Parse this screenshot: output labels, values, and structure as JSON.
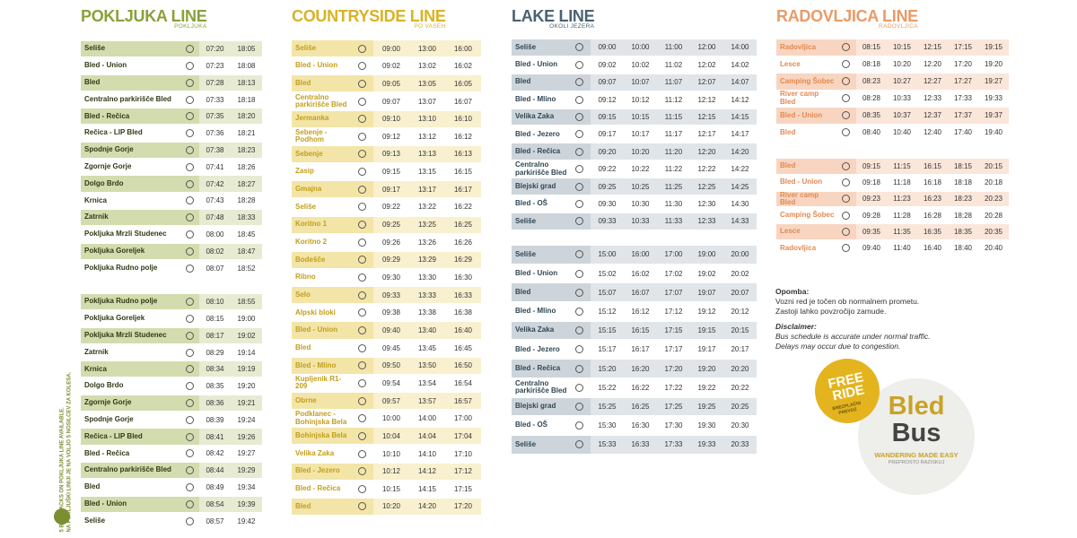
{
  "lines": [
    {
      "title": "POKLJUKA LINE",
      "subtitle": "POKLJUKA",
      "blocks": [
        {
          "rows": [
            {
              "stop": "Seliše",
              "times": [
                "07:20",
                "18:05"
              ]
            },
            {
              "stop": "Bled - Union",
              "times": [
                "07:23",
                "18:08"
              ]
            },
            {
              "stop": "Bled",
              "times": [
                "07:28",
                "18:13"
              ]
            },
            {
              "stop": "Centralno parkirišče Bled",
              "times": [
                "07:33",
                "18:18"
              ]
            },
            {
              "stop": "Bled - Rečica",
              "times": [
                "07:35",
                "18:20"
              ]
            },
            {
              "stop": "Rečica - LIP Bled",
              "times": [
                "07:36",
                "18:21"
              ]
            },
            {
              "stop": "Spodnje Gorje",
              "times": [
                "07:38",
                "18:23"
              ]
            },
            {
              "stop": "Zgornje Gorje",
              "times": [
                "07:41",
                "18:26"
              ]
            },
            {
              "stop": "Dolgo Brdo",
              "times": [
                "07:42",
                "18:27"
              ]
            },
            {
              "stop": "Krnica",
              "times": [
                "07:43",
                "18:28"
              ]
            },
            {
              "stop": "Zatrnik",
              "times": [
                "07:48",
                "18:33"
              ]
            },
            {
              "stop": "Pokljuka Mrzli Studenec",
              "times": [
                "08:00",
                "18:45"
              ]
            },
            {
              "stop": "Pokljuka Goreljek",
              "times": [
                "08:02",
                "18:47"
              ]
            },
            {
              "stop": "Pokljuka Rudno polje",
              "times": [
                "08:07",
                "18:52"
              ]
            }
          ]
        },
        {
          "rows": [
            {
              "stop": "Pokljuka Rudno polje",
              "times": [
                "08:10",
                "18:55"
              ]
            },
            {
              "stop": "Pokljuka Goreljek",
              "times": [
                "08:15",
                "19:00"
              ]
            },
            {
              "stop": "Pokljuka Mrzli Studenec",
              "times": [
                "08:17",
                "19:02"
              ]
            },
            {
              "stop": "Zatrnik",
              "times": [
                "08:29",
                "19:14"
              ]
            },
            {
              "stop": "Krnica",
              "times": [
                "08:34",
                "19:19"
              ]
            },
            {
              "stop": "Dolgo Brdo",
              "times": [
                "08:35",
                "19:20"
              ]
            },
            {
              "stop": "Zgornje Gorje",
              "times": [
                "08:36",
                "19:21"
              ]
            },
            {
              "stop": "Spodnje Gorje",
              "times": [
                "08:39",
                "19:24"
              ]
            },
            {
              "stop": "Rečica - LIP Bled",
              "times": [
                "08:41",
                "19:26"
              ]
            },
            {
              "stop": "Bled - Rečica",
              "times": [
                "08:42",
                "19:27"
              ]
            },
            {
              "stop": "Centralno parkirišče Bled",
              "times": [
                "08:44",
                "19:29"
              ]
            },
            {
              "stop": "Bled",
              "times": [
                "08:49",
                "19:34"
              ]
            },
            {
              "stop": "Bled - Union",
              "times": [
                "08:54",
                "19:39"
              ]
            },
            {
              "stop": "Seliše",
              "times": [
                "08:57",
                "19:42"
              ]
            }
          ]
        }
      ]
    },
    {
      "title": "COUNTRYSIDE LINE",
      "subtitle": "PO VASEH",
      "blocks": [
        {
          "rows": [
            {
              "stop": "Seliše",
              "times": [
                "09:00",
                "13:00",
                "16:00"
              ]
            },
            {
              "stop": "Bled - Union",
              "times": [
                "09:02",
                "13:02",
                "16:02"
              ]
            },
            {
              "stop": "Bled",
              "times": [
                "09:05",
                "13:05",
                "16:05"
              ]
            },
            {
              "stop": "Centralno parkirišče Bled",
              "times": [
                "09:07",
                "13:07",
                "16:07"
              ]
            },
            {
              "stop": "Jermanka",
              "times": [
                "09:10",
                "13:10",
                "16:10"
              ]
            },
            {
              "stop": "Sebenje - Podhom",
              "times": [
                "09:12",
                "13:12",
                "16:12"
              ]
            },
            {
              "stop": "Sebenje",
              "times": [
                "09:13",
                "13:13",
                "16:13"
              ]
            },
            {
              "stop": "Zasip",
              "times": [
                "09:15",
                "13:15",
                "16:15"
              ]
            },
            {
              "stop": "Gmajna",
              "times": [
                "09:17",
                "13:17",
                "16:17"
              ]
            },
            {
              "stop": "Seliše",
              "times": [
                "09:22",
                "13:22",
                "16:22"
              ]
            },
            {
              "stop": "Koritno 1",
              "times": [
                "09:25",
                "13:25",
                "16:25"
              ]
            },
            {
              "stop": "Koritno 2",
              "times": [
                "09:26",
                "13:26",
                "16:26"
              ]
            },
            {
              "stop": "Bodešče",
              "times": [
                "09:29",
                "13:29",
                "16:29"
              ]
            },
            {
              "stop": "Ribno",
              "times": [
                "09:30",
                "13:30",
                "16:30"
              ]
            },
            {
              "stop": "Selo",
              "times": [
                "09:33",
                "13:33",
                "16:33"
              ]
            },
            {
              "stop": "Alpski bloki",
              "times": [
                "09:38",
                "13:38",
                "16:38"
              ]
            },
            {
              "stop": "Bled - Union",
              "times": [
                "09:40",
                "13:40",
                "16:40"
              ]
            },
            {
              "stop": "Bled",
              "times": [
                "09:45",
                "13:45",
                "16:45"
              ]
            },
            {
              "stop": "Bled - Mlino",
              "times": [
                "09:50",
                "13:50",
                "16:50"
              ]
            },
            {
              "stop": "Kupljenik R1-209",
              "times": [
                "09:54",
                "13:54",
                "16:54"
              ]
            },
            {
              "stop": "Obrne",
              "times": [
                "09:57",
                "13:57",
                "16:57"
              ]
            },
            {
              "stop": "Podklanec - Bohinjska Bela",
              "times": [
                "10:00",
                "14:00",
                "17:00"
              ]
            },
            {
              "stop": "Bohinjska Bela",
              "times": [
                "10:04",
                "14:04",
                "17:04"
              ]
            },
            {
              "stop": "Velika Zaka",
              "times": [
                "10:10",
                "14:10",
                "17:10"
              ]
            },
            {
              "stop": "Bled - Jezero",
              "times": [
                "10:12",
                "14:12",
                "17:12"
              ]
            },
            {
              "stop": "Bled - Rečica",
              "times": [
                "10:15",
                "14:15",
                "17:15"
              ]
            },
            {
              "stop": "Bled",
              "times": [
                "10:20",
                "14:20",
                "17:20"
              ]
            }
          ]
        }
      ]
    },
    {
      "title": "LAKE LINE",
      "subtitle": "OKOLI JEZERA",
      "blocks": [
        {
          "rows": [
            {
              "stop": "Seliše",
              "times": [
                "09:00",
                "10:00",
                "11:00",
                "12:00",
                "14:00"
              ]
            },
            {
              "stop": "Bled - Union",
              "times": [
                "09:02",
                "10:02",
                "11:02",
                "12:02",
                "14:02"
              ]
            },
            {
              "stop": "Bled",
              "times": [
                "09:07",
                "10:07",
                "11:07",
                "12:07",
                "14:07"
              ]
            },
            {
              "stop": "Bled - Mlino",
              "times": [
                "09:12",
                "10:12",
                "11:12",
                "12:12",
                "14:12"
              ]
            },
            {
              "stop": "Velika Zaka",
              "times": [
                "09:15",
                "10:15",
                "11:15",
                "12:15",
                "14:15"
              ]
            },
            {
              "stop": "Bled - Jezero",
              "times": [
                "09:17",
                "10:17",
                "11:17",
                "12:17",
                "14:17"
              ]
            },
            {
              "stop": "Bled - Rečica",
              "times": [
                "09:20",
                "10:20",
                "11:20",
                "12:20",
                "14:20"
              ]
            },
            {
              "stop": "Centralno parkirišče Bled",
              "times": [
                "09:22",
                "10:22",
                "11:22",
                "12:22",
                "14:22"
              ]
            },
            {
              "stop": "Blejski grad",
              "times": [
                "09:25",
                "10:25",
                "11:25",
                "12:25",
                "14:25"
              ]
            },
            {
              "stop": "Bled - OŠ",
              "times": [
                "09:30",
                "10:30",
                "11:30",
                "12:30",
                "14:30"
              ]
            },
            {
              "stop": "Seliše",
              "times": [
                "09:33",
                "10:33",
                "11:33",
                "12:33",
                "14:33"
              ]
            }
          ]
        },
        {
          "rows": [
            {
              "stop": "Seliše",
              "times": [
                "15:00",
                "16:00",
                "17:00",
                "19:00",
                "20:00"
              ]
            },
            {
              "stop": "Bled - Union",
              "times": [
                "15:02",
                "16:02",
                "17:02",
                "19:02",
                "20:02"
              ]
            },
            {
              "stop": "Bled",
              "times": [
                "15:07",
                "16:07",
                "17:07",
                "19:07",
                "20:07"
              ]
            },
            {
              "stop": "Bled - Mlino",
              "times": [
                "15:12",
                "16:12",
                "17:12",
                "19:12",
                "20:12"
              ]
            },
            {
              "stop": "Velika Zaka",
              "times": [
                "15:15",
                "16:15",
                "17:15",
                "19:15",
                "20:15"
              ]
            },
            {
              "stop": "Bled - Jezero",
              "times": [
                "15:17",
                "16:17",
                "17:17",
                "19:17",
                "20:17"
              ]
            },
            {
              "stop": "Bled - Rečica",
              "times": [
                "15:20",
                "16:20",
                "17:20",
                "19:20",
                "20:20"
              ]
            },
            {
              "stop": "Centralno parkirišče Bled",
              "times": [
                "15:22",
                "16:22",
                "17:22",
                "19:22",
                "20:22"
              ]
            },
            {
              "stop": "Blejski grad",
              "times": [
                "15:25",
                "16:25",
                "17:25",
                "19:25",
                "20:25"
              ]
            },
            {
              "stop": "Bled - OŠ",
              "times": [
                "15:30",
                "16:30",
                "17:30",
                "19:30",
                "20:30"
              ]
            },
            {
              "stop": "Seliše",
              "times": [
                "15:33",
                "16:33",
                "17:33",
                "19:33",
                "20:33"
              ]
            }
          ]
        }
      ]
    },
    {
      "title": "RADOVLJICA LINE",
      "subtitle": "RADOVLJICA",
      "blocks": [
        {
          "rows": [
            {
              "stop": "Radovljica",
              "times": [
                "08:15",
                "10:15",
                "12:15",
                "17:15",
                "19:15"
              ]
            },
            {
              "stop": "Lesce",
              "times": [
                "08:18",
                "10:20",
                "12:20",
                "17:20",
                "19:20"
              ]
            },
            {
              "stop": "Camping Šobec",
              "times": [
                "08:23",
                "10:27",
                "12:27",
                "17:27",
                "19:27"
              ]
            },
            {
              "stop": "River camp Bled",
              "times": [
                "08:28",
                "10:33",
                "12:33",
                "17:33",
                "19:33"
              ]
            },
            {
              "stop": "Bled - Union",
              "times": [
                "08:35",
                "10:37",
                "12:37",
                "17:37",
                "19:37"
              ]
            },
            {
              "stop": "Bled",
              "times": [
                "08:40",
                "10:40",
                "12:40",
                "17:40",
                "19:40"
              ]
            }
          ]
        },
        {
          "rows": [
            {
              "stop": "Bled",
              "times": [
                "09:15",
                "11:15",
                "16:15",
                "18:15",
                "20:15"
              ]
            },
            {
              "stop": "Bled - Union",
              "times": [
                "09:18",
                "11:18",
                "16:18",
                "18:18",
                "20:18"
              ]
            },
            {
              "stop": "River camp Bled",
              "times": [
                "09:23",
                "11:23",
                "16:23",
                "18:23",
                "20:23"
              ]
            },
            {
              "stop": "Camping Šobec",
              "times": [
                "09:28",
                "11:28",
                "16:28",
                "18:28",
                "20:28"
              ]
            },
            {
              "stop": "Lesce",
              "times": [
                "09:35",
                "11:35",
                "16:35",
                "18:35",
                "20:35"
              ]
            },
            {
              "stop": "Radovljica",
              "times": [
                "09:40",
                "11:40",
                "16:40",
                "18:40",
                "20:40"
              ]
            }
          ]
        }
      ]
    }
  ],
  "side_note": [
    "5 BIKE RACKS ON POKLJUKA LINE AVAILABLE.",
    "NA POKLJUŠKI LINIJI JE NA VOLJO 5 NOSILCEV ZA KOLESA."
  ],
  "notes": {
    "sl_heading": "Opomba:",
    "sl_lines": [
      "Vozni red je točen ob normalnem prometu.",
      "Zastoji lahko povzročijo zamude."
    ],
    "en_heading": "Disclaimer:",
    "en_lines": [
      "Bus schedule is accurate under normal traffic.",
      "Delays may occur due to congestion."
    ]
  },
  "badge": {
    "title_1": "FREE",
    "title_2": "RIDE",
    "subtitle_1": "BREZPLAČNI",
    "subtitle_2": "PREVOZ"
  },
  "logo": {
    "word_1": "Bled",
    "word_2": "Bus",
    "tagline": "WANDERING MADE EASY",
    "tagline_sl": "PREPROSTO RAZISKUJ"
  }
}
